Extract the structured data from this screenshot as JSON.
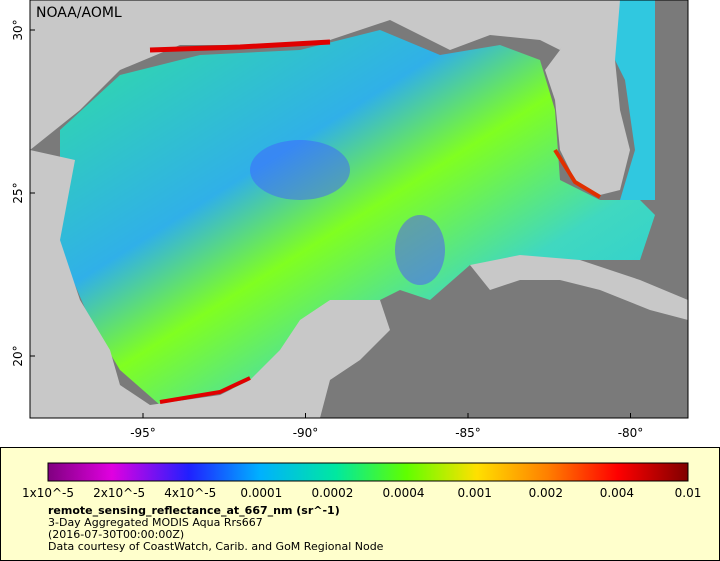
{
  "header": {
    "credit": "NOAA/AOML"
  },
  "map": {
    "lat_ticks": [
      {
        "value": 30,
        "label": "30°"
      },
      {
        "value": 25,
        "label": "25°"
      },
      {
        "value": 20,
        "label": "20°"
      }
    ],
    "lon_ticks": [
      {
        "value": -95,
        "label": "-95°"
      },
      {
        "value": -90,
        "label": "-90°"
      },
      {
        "value": -85,
        "label": "-85°"
      },
      {
        "value": -80,
        "label": "-80°"
      }
    ]
  },
  "legend": {
    "labels": [
      "1x10^-5",
      "2x10^-5",
      "4x10^-5",
      "0.0001",
      "0.0002",
      "0.0004",
      "0.001",
      "0.002",
      "0.004",
      "0.01"
    ],
    "title": "remote_sensing_reflectance_at_667_nm (sr^-1)",
    "subtitle": "3-Day Aggregated MODIS Aqua Rrs667",
    "date": "(2016-07-30T00:00:00Z)",
    "source": "Data courtesy of CoastWatch, Carib. and GoM Regional Node"
  }
}
